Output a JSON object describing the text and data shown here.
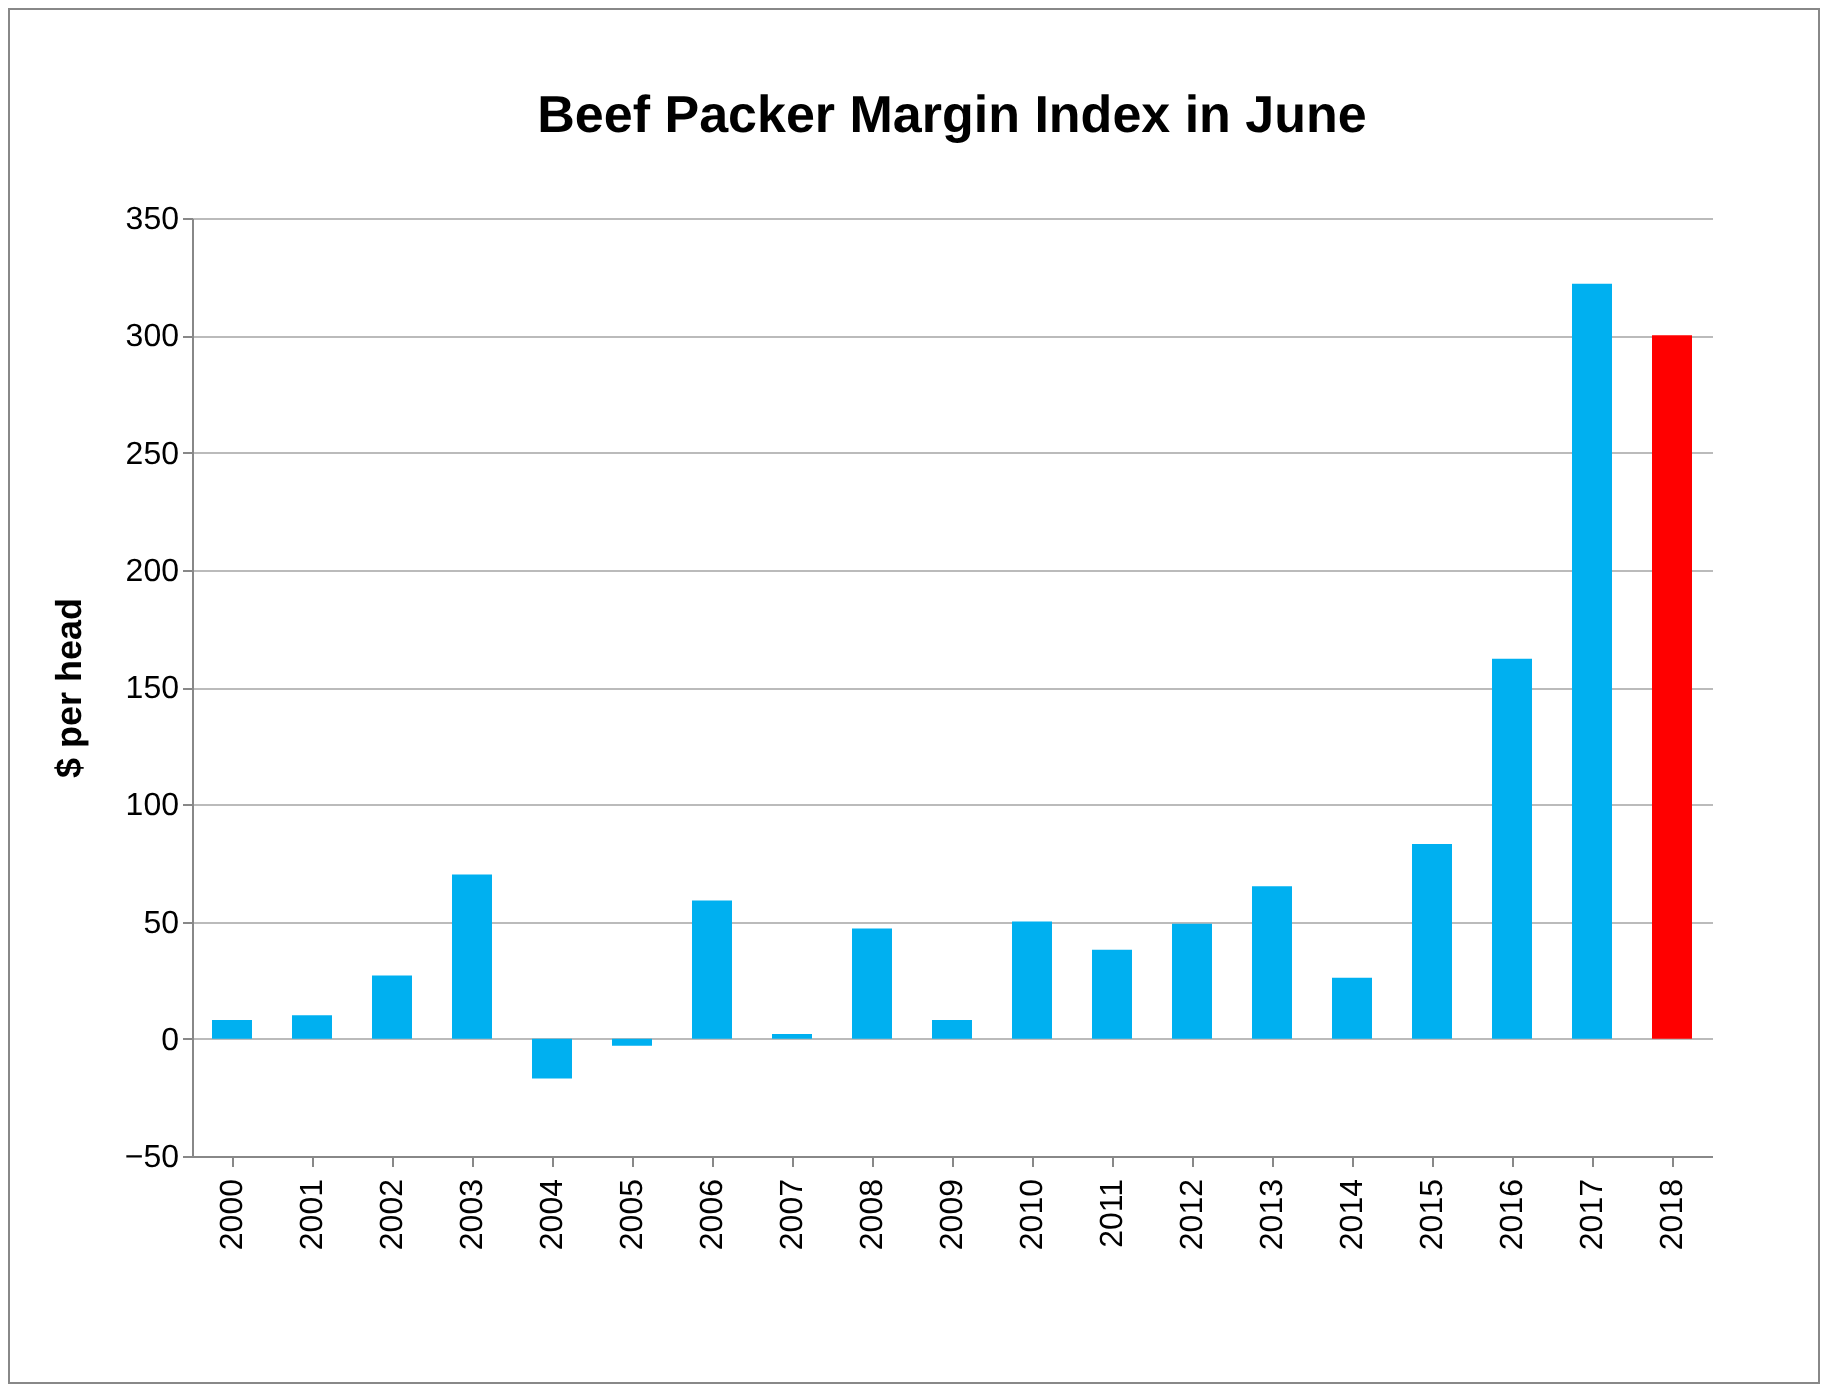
{
  "chart_data": {
    "type": "bar",
    "title": "Beef Packer Margin Index  in June",
    "ylabel": "$ per head",
    "categories": [
      "2000",
      "2001",
      "2002",
      "2003",
      "2004",
      "2005",
      "2006",
      "2007",
      "2008",
      "2009",
      "2010",
      "2011",
      "2012",
      "2013",
      "2014",
      "2015",
      "2016",
      "2017",
      "2018"
    ],
    "values": [
      8,
      10,
      27,
      70,
      -17,
      -3,
      59,
      2,
      47,
      8,
      50,
      38,
      49,
      65,
      26,
      83,
      162,
      322,
      300
    ],
    "colors": [
      "#00b0f0",
      "#00b0f0",
      "#00b0f0",
      "#00b0f0",
      "#00b0f0",
      "#00b0f0",
      "#00b0f0",
      "#00b0f0",
      "#00b0f0",
      "#00b0f0",
      "#00b0f0",
      "#00b0f0",
      "#00b0f0",
      "#00b0f0",
      "#00b0f0",
      "#00b0f0",
      "#00b0f0",
      "#00b0f0",
      "#ff0000"
    ],
    "ylim": [
      -50,
      350
    ],
    "yticks": [
      -50,
      0,
      50,
      100,
      150,
      200,
      250,
      300,
      350
    ],
    "grid": "y"
  }
}
